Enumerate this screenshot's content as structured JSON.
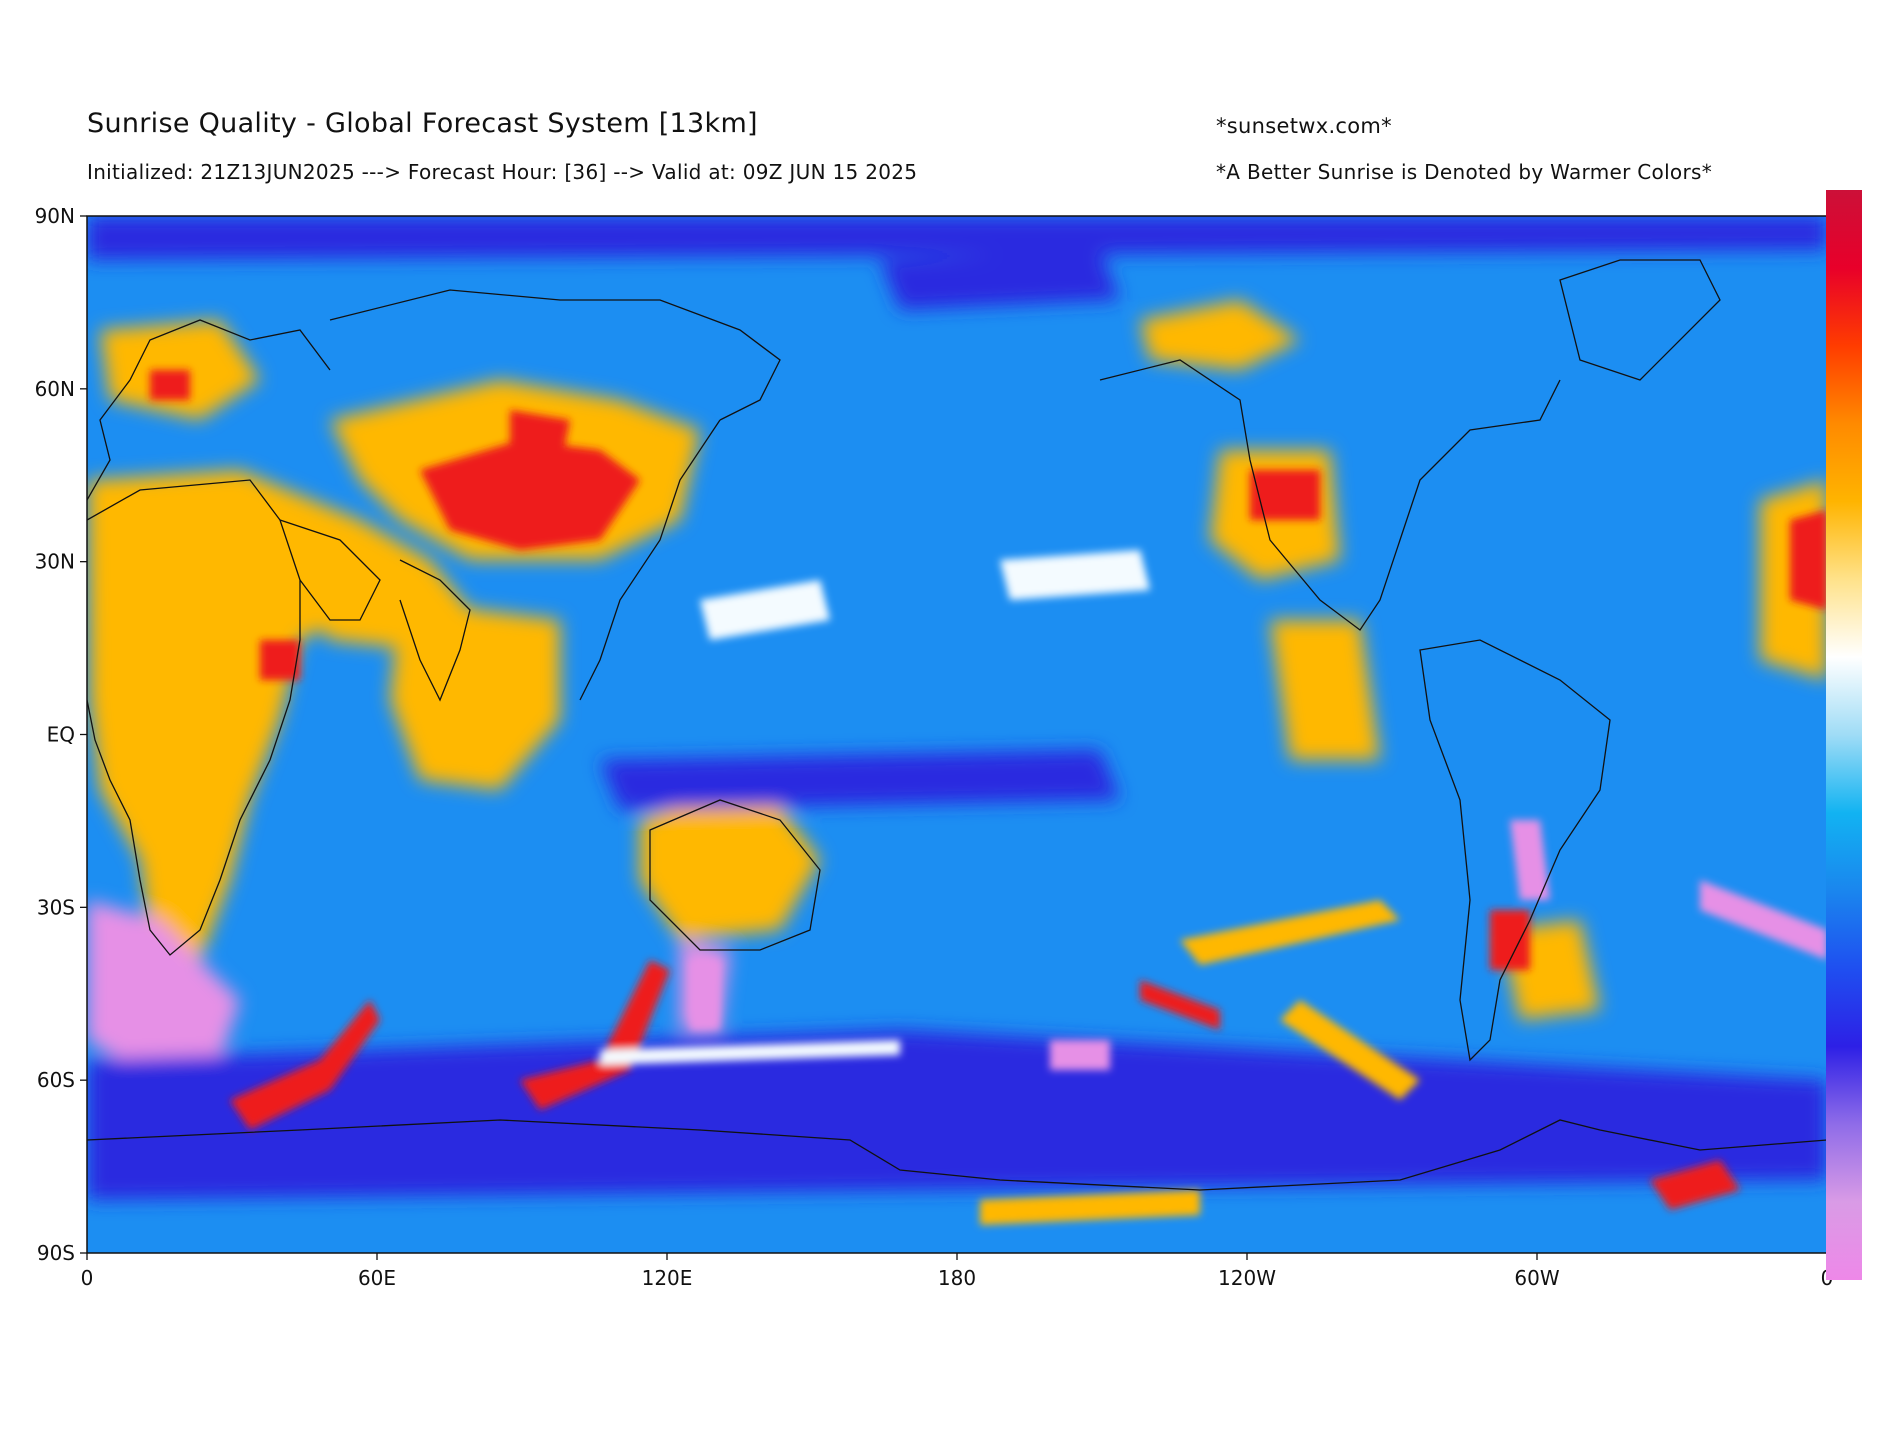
{
  "header": {
    "title": "Sunrise Quality - Global Forecast System [13km]",
    "subtitle": "Initialized: 21Z13JUN2025 ---> Forecast Hour: [36] --> Valid at: 09Z JUN 15 2025",
    "site": "*sunsetwx.com*",
    "note": "*A Better Sunrise is Denoted by Warmer Colors*"
  },
  "map": {
    "projection": "equirectangular",
    "lon_range": [
      0,
      360
    ],
    "lat_range": [
      -90,
      90
    ],
    "lat_ticks": [
      "90N",
      "60N",
      "30N",
      "EQ",
      "30S",
      "60S",
      "90S"
    ],
    "lon_ticks": [
      "0",
      "60E",
      "120E",
      "180",
      "120W",
      "60W",
      "0"
    ]
  },
  "colorbar": {
    "orientation": "vertical",
    "scale_low_to_high": [
      "#ee88e8",
      "#d99be6",
      "#8f6ce8",
      "#2d20e6",
      "#1f4ff0",
      "#1a86ee",
      "#12b3f2",
      "#9fdcf6",
      "#ffffff",
      "#ffe28a",
      "#ffb400",
      "#ff8a00",
      "#ff3c00",
      "#e8002a",
      "#cc1038"
    ]
  },
  "colors": {
    "ocean_base": "#1c8ef2",
    "warm": "#ffb800",
    "hot": "#ee1a1a",
    "cold": "#2a2ae0",
    "very_cold": "#e690e6",
    "coastline": "#111111"
  }
}
